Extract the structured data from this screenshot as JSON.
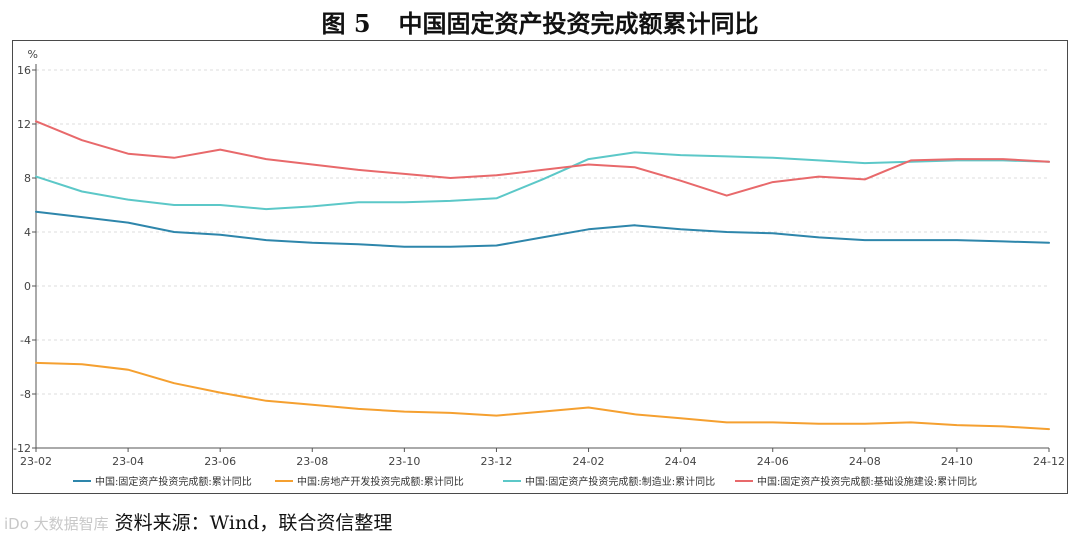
{
  "figure": {
    "number": "图 5",
    "title": "中国固定资产投资完成额累计同比"
  },
  "source": {
    "watermark": "iDo 大数据智库",
    "text": "资料来源：Wind，联合资信整理"
  },
  "chart_data": {
    "type": "line",
    "title": "中国固定资产投资完成额累计同比",
    "ylabel": "%",
    "xlabel": "",
    "ylim": [
      -12,
      16
    ],
    "yticks": [
      16,
      12,
      8,
      4,
      0,
      -4,
      -8,
      -12
    ],
    "grid": true,
    "legend_position": "bottom",
    "x": [
      "23-02",
      "23-03",
      "23-04",
      "23-05",
      "23-06",
      "23-07",
      "23-08",
      "23-09",
      "23-10",
      "23-11",
      "23-12",
      "24-01",
      "24-02",
      "24-03",
      "24-04",
      "24-05",
      "24-06",
      "24-07",
      "24-08",
      "24-09",
      "24-10",
      "24-11",
      "24-12"
    ],
    "xtick_labels": [
      "23-02",
      "23-04",
      "23-06",
      "23-08",
      "23-10",
      "23-12",
      "24-02",
      "24-04",
      "24-06",
      "24-08",
      "24-10",
      "24-12"
    ],
    "series": [
      {
        "name": "中国:固定资产投资完成额:累计同比",
        "color": "#2e86ab",
        "values": [
          5.5,
          5.1,
          4.7,
          4.0,
          3.8,
          3.4,
          3.2,
          3.1,
          2.9,
          2.9,
          3.0,
          3.6,
          4.2,
          4.5,
          4.2,
          4.0,
          3.9,
          3.6,
          3.4,
          3.4,
          3.4,
          3.3,
          3.2
        ]
      },
      {
        "name": "中国:房地产开发投资完成额:累计同比",
        "color": "#f5a030",
        "values": [
          -5.7,
          -5.8,
          -6.2,
          -7.2,
          -7.9,
          -8.5,
          -8.8,
          -9.1,
          -9.3,
          -9.4,
          -9.6,
          -9.3,
          -9.0,
          -9.5,
          -9.8,
          -10.1,
          -10.1,
          -10.2,
          -10.2,
          -10.1,
          -10.3,
          -10.4,
          -10.6
        ]
      },
      {
        "name": "中国:固定资产投资完成额:制造业:累计同比",
        "color": "#5cc8c8",
        "values": [
          8.1,
          7.0,
          6.4,
          6.0,
          6.0,
          5.7,
          5.9,
          6.2,
          6.2,
          6.3,
          6.5,
          7.9,
          9.4,
          9.9,
          9.7,
          9.6,
          9.5,
          9.3,
          9.1,
          9.2,
          9.3,
          9.3,
          9.2
        ]
      },
      {
        "name": "中国:固定资产投资完成额:基础设施建设:累计同比",
        "color": "#e8696b",
        "values": [
          12.2,
          10.8,
          9.8,
          9.5,
          10.1,
          9.4,
          9.0,
          8.6,
          8.3,
          8.0,
          8.2,
          8.6,
          9.0,
          8.8,
          7.8,
          6.7,
          7.7,
          8.1,
          7.9,
          9.3,
          9.4,
          9.4,
          9.2
        ]
      }
    ]
  }
}
